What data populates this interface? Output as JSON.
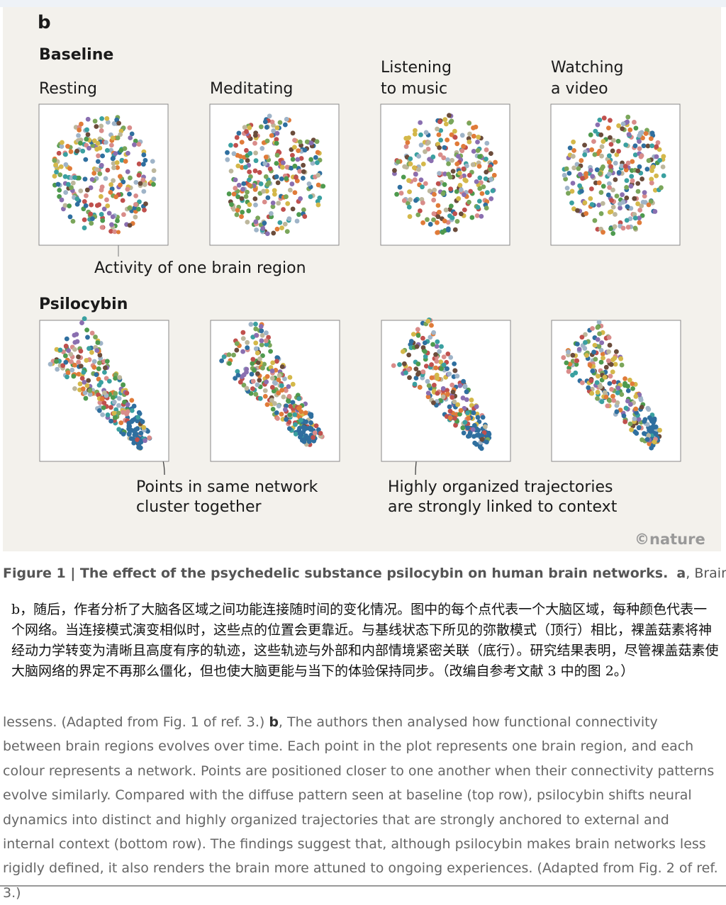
{
  "figure": {
    "panel_label": "b",
    "baseline_label": "Baseline",
    "baseline_panels": [
      [
        "Resting"
      ],
      [
        "Meditating"
      ],
      [
        "Listening",
        "to music"
      ],
      [
        "Watching",
        "a video"
      ]
    ],
    "region_note": "Activity of one brain region",
    "psilocybin_label": "Psilocybin",
    "note_left": [
      "Points in same network",
      "cluster together"
    ],
    "note_right": [
      "Highly organized trajectories",
      "are strongly linked to context"
    ],
    "credit": "©nature"
  },
  "caption": {
    "heading": "Figure 1 | The effect of the psychedelic substance psilocybin on human brain networks.",
    "lead": "a",
    "rest": ", Brain"
  },
  "translation": "b，随后，作者分析了大脑各区域之间功能连接随时间的变化情况。图中的每个点代表一个大脑区域，每种颜色代表一个网络。当连接模式演变相似时，这些点的位置会更靠近。与基线状态下所见的弥散模式（顶行）相比，裸盖菇素将神经动力学转变为清晰且高度有序的轨迹，这些轨迹与外部和内部情境紧密关联（底行）。研究结果表明，尽管裸盖菇素使大脑网络的界定不再那么僵化，但也使大脑更能与当下的体验保持同步。（改编自参考文献 3 中的图 2。）",
  "body": {
    "before": "lessens. (Adapted from Fig. 1 of ref. 3.) ",
    "lead": "b",
    "after": ", The authors then analysed how functional connectivity between brain regions evolves over time. Each point in the plot represents one brain region, and each colour represents a network. Points are positioned closer to one another when their connectivity patterns evolve similarly. Compared with the diffuse pattern seen at baseline (top row), psilocybin shifts neural dynamics into distinct and highly organized trajectories that are strongly anchored to external and internal context (bottom row). The findings suggest that, although psilocybin makes brain networks less rigidly defined, it also renders the brain more attuned to ongoing experiences. (Adapted from Fig. 2 of ref. 3.)"
  }
}
